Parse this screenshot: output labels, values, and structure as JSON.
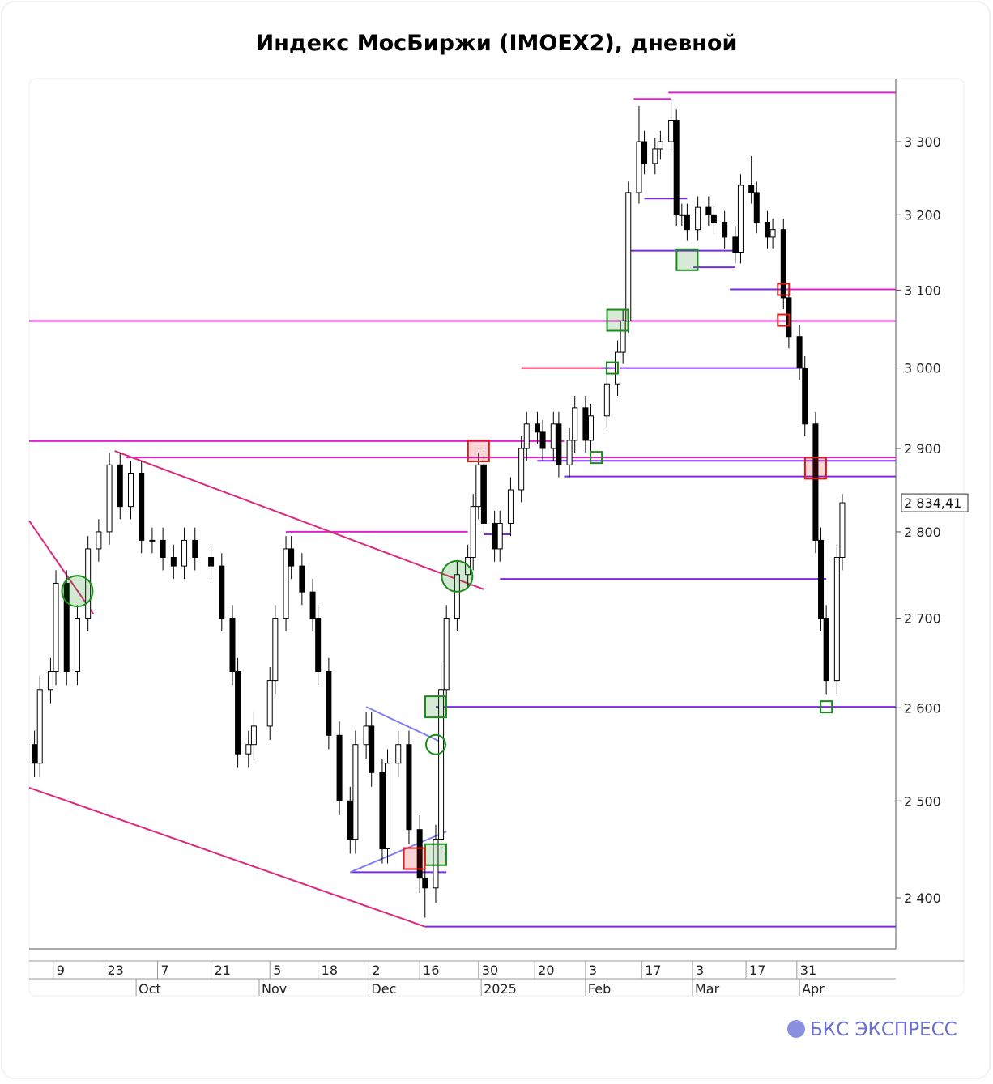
{
  "chart_data": {
    "type": "candlestick",
    "title": "Индекс МосБиржи (IMOEX2), дневной",
    "brand": "БКС ЭКСПРЕСС",
    "ylog": true,
    "ylim": [
      2349,
      3389
    ],
    "yticks": [
      {
        "value": 2400,
        "label": "2 400"
      },
      {
        "value": 2500,
        "label": "2 500"
      },
      {
        "value": 2600,
        "label": "2 600"
      },
      {
        "value": 2700,
        "label": "2 700"
      },
      {
        "value": 2800,
        "label": "2 800"
      },
      {
        "value": 2900,
        "label": "2 900"
      },
      {
        "value": 3000,
        "label": "3 000"
      },
      {
        "value": 3100,
        "label": "3 100"
      },
      {
        "value": 3200,
        "label": "3 200"
      },
      {
        "value": 3300,
        "label": "3 300"
      }
    ],
    "xlim": [
      0,
      162
    ],
    "xticks": [
      {
        "value": 4.5,
        "label": "9"
      },
      {
        "value": 14,
        "label": "23"
      },
      {
        "value": 24,
        "label": "7"
      },
      {
        "value": 34,
        "label": "21"
      },
      {
        "value": 45,
        "label": "5"
      },
      {
        "value": 54,
        "label": "18"
      },
      {
        "value": 63.5,
        "label": "2"
      },
      {
        "value": 73,
        "label": "16"
      },
      {
        "value": 84,
        "label": "30"
      },
      {
        "value": 94.5,
        "label": "20"
      },
      {
        "value": 104,
        "label": "3"
      },
      {
        "value": 114.5,
        "label": "17"
      },
      {
        "value": 124,
        "label": "3"
      },
      {
        "value": 134,
        "label": "17"
      },
      {
        "value": 143.5,
        "label": "31"
      }
    ],
    "xticks_month": [
      {
        "value": 20,
        "label": "Oct"
      },
      {
        "value": 43,
        "label": "Nov"
      },
      {
        "value": 63.5,
        "label": "Dec"
      },
      {
        "value": 84.5,
        "label": "2025"
      },
      {
        "value": 104,
        "label": "Feb"
      },
      {
        "value": 124,
        "label": "Mar"
      },
      {
        "value": 144,
        "label": "Apr"
      }
    ],
    "x": [
      1,
      2,
      4,
      5,
      7,
      9,
      11,
      13,
      15,
      17,
      19,
      21,
      23,
      25,
      27,
      29,
      31,
      34,
      36,
      38,
      39,
      41,
      42,
      45,
      46,
      48,
      49,
      51,
      53,
      54,
      56,
      58,
      60,
      61,
      63,
      64,
      66,
      67,
      69,
      71,
      73,
      74,
      76,
      77,
      78,
      80,
      82,
      83,
      84,
      85,
      87,
      88,
      90,
      92,
      93,
      95,
      96,
      98,
      99,
      101,
      102,
      104,
      105,
      108,
      110,
      111,
      112,
      114,
      115,
      117,
      118,
      120,
      121,
      122,
      123,
      125,
      127,
      128,
      130,
      132,
      133,
      135,
      136,
      138,
      139,
      141,
      142,
      144,
      145,
      147,
      148,
      149,
      151,
      152
    ],
    "open": [
      2560,
      2540,
      2620,
      2640,
      2740,
      2640,
      2700,
      2780,
      2800,
      2880,
      2830,
      2870,
      2790,
      2790,
      2770,
      2760,
      2790,
      2770,
      2760,
      2700,
      2640,
      2550,
      2560,
      2580,
      2630,
      2700,
      2780,
      2760,
      2730,
      2700,
      2640,
      2570,
      2500,
      2460,
      2560,
      2580,
      2530,
      2450,
      2540,
      2560,
      2470,
      2420,
      2410,
      2460,
      2620,
      2700,
      2750,
      2770,
      2830,
      2880,
      2810,
      2780,
      2810,
      2850,
      2900,
      2930,
      2920,
      2900,
      2930,
      2880,
      2910,
      2950,
      2910,
      2940,
      2980,
      3020,
      3060,
      3230,
      3300,
      3270,
      3290,
      3300,
      3330,
      3200,
      3200,
      3180,
      3210,
      3200,
      3190,
      3170,
      3150,
      3240,
      3230,
      3190,
      3170,
      3180,
      3090,
      3040,
      3000,
      2930,
      2790,
      2700,
      2630,
      2770
    ],
    "high": [
      2575,
      2635,
      2655,
      2755,
      2755,
      2715,
      2795,
      2815,
      2895,
      2895,
      2885,
      2885,
      2805,
      2805,
      2785,
      2805,
      2805,
      2785,
      2775,
      2715,
      2655,
      2575,
      2595,
      2645,
      2715,
      2795,
      2795,
      2775,
      2745,
      2715,
      2655,
      2585,
      2515,
      2575,
      2595,
      2595,
      2545,
      2555,
      2575,
      2575,
      2485,
      2435,
      2475,
      2650,
      2715,
      2765,
      2785,
      2845,
      2895,
      2895,
      2825,
      2825,
      2865,
      2915,
      2945,
      2945,
      2935,
      2945,
      2945,
      2925,
      2965,
      2965,
      2955,
      2995,
      3035,
      3075,
      3245,
      3350,
      3315,
      3305,
      3315,
      3360,
      3345,
      3215,
      3215,
      3225,
      3225,
      3215,
      3205,
      3185,
      3255,
      3280,
      3245,
      3205,
      3195,
      3195,
      3105,
      3055,
      3015,
      2945,
      2805,
      2715,
      2785,
      2845
    ],
    "low": [
      2525,
      2525,
      2605,
      2625,
      2625,
      2625,
      2685,
      2765,
      2785,
      2815,
      2815,
      2775,
      2775,
      2755,
      2745,
      2745,
      2755,
      2745,
      2685,
      2625,
      2535,
      2535,
      2545,
      2565,
      2615,
      2685,
      2745,
      2715,
      2685,
      2625,
      2555,
      2485,
      2445,
      2445,
      2545,
      2515,
      2435,
      2435,
      2525,
      2455,
      2405,
      2380,
      2395,
      2445,
      2605,
      2685,
      2735,
      2755,
      2815,
      2795,
      2765,
      2765,
      2795,
      2835,
      2885,
      2905,
      2885,
      2885,
      2865,
      2865,
      2895,
      2895,
      2895,
      2925,
      2965,
      3005,
      3045,
      3215,
      3255,
      3255,
      3275,
      3285,
      3185,
      3185,
      3165,
      3165,
      3185,
      3175,
      3155,
      3135,
      3135,
      3215,
      3175,
      3155,
      3155,
      3075,
      3025,
      2985,
      2915,
      2775,
      2685,
      2615,
      2615,
      2755
    ],
    "close": [
      2540,
      2620,
      2640,
      2740,
      2640,
      2700,
      2780,
      2800,
      2880,
      2830,
      2870,
      2790,
      2790,
      2770,
      2760,
      2790,
      2770,
      2760,
      2700,
      2640,
      2550,
      2560,
      2580,
      2630,
      2700,
      2780,
      2760,
      2730,
      2700,
      2640,
      2570,
      2500,
      2460,
      2560,
      2580,
      2530,
      2450,
      2540,
      2560,
      2470,
      2420,
      2410,
      2460,
      2620,
      2700,
      2750,
      2770,
      2830,
      2880,
      2810,
      2780,
      2810,
      2850,
      2900,
      2930,
      2920,
      2900,
      2930,
      2880,
      2910,
      2950,
      2910,
      2940,
      2980,
      3020,
      3060,
      3230,
      3300,
      3270,
      3290,
      3300,
      3330,
      3200,
      3200,
      3180,
      3210,
      3200,
      3190,
      3170,
      3150,
      3240,
      3230,
      3190,
      3170,
      3180,
      3090,
      3040,
      3000,
      2930,
      2790,
      2700,
      2630,
      2770,
      2834.41
    ],
    "last_label": "2 834,41",
    "levels": [
      {
        "y": 3369,
        "x": [
          119.5,
          162
        ],
        "color": "#e020d0"
      },
      {
        "y": 3360,
        "x": [
          113,
          120
        ],
        "color": "#e020d0"
      },
      {
        "y": 3060,
        "x": [
          0,
          162
        ],
        "color": "#e020d0"
      },
      {
        "y": 2909,
        "x": [
          0,
          100
        ],
        "color": "#e020d0"
      },
      {
        "y": 2889,
        "x": [
          18,
          162
        ],
        "color": "#e020d0"
      },
      {
        "y": 3101,
        "x": [
          131,
          162
        ],
        "color": "#e020d0"
      },
      {
        "y": 2800,
        "x": [
          48,
          82
        ],
        "color": "#e020d0"
      },
      {
        "y": 3000,
        "x": [
          92,
          109
        ],
        "color": "#e8174f"
      },
      {
        "y": 3222,
        "x": [
          115,
          123
        ],
        "color": "#7b2be0"
      },
      {
        "y": 3152,
        "x": [
          112,
          132
        ],
        "color": "#7b2be0"
      },
      {
        "y": 3130,
        "x": [
          124,
          132
        ],
        "color": "#7b2be0"
      },
      {
        "y": 3101,
        "x": [
          131,
          141
        ],
        "color": "#7b2be0"
      },
      {
        "y": 3000,
        "x": [
          107,
          145
        ],
        "color": "#7b2be0"
      },
      {
        "y": 2885,
        "x": [
          95,
          162
        ],
        "color": "#7b2be0"
      },
      {
        "y": 2866,
        "x": [
          100,
          162
        ],
        "color": "#7b2be0"
      },
      {
        "y": 2797,
        "x": [
          85,
          90
        ],
        "color": "#7b2be0"
      },
      {
        "y": 2745,
        "x": [
          88,
          149
        ],
        "color": "#7b2be0"
      },
      {
        "y": 2601,
        "x": [
          76,
          162
        ],
        "color": "#7b2be0"
      },
      {
        "y": 2426,
        "x": [
          60,
          78
        ],
        "color": "#7b2be0"
      },
      {
        "y": 2371,
        "x": [
          74,
          162
        ],
        "color": "#7b2be0"
      }
    ],
    "trendlines": [
      {
        "x": [
          0,
          74
        ],
        "y": [
          2514,
          2371
        ],
        "color": "#e0287a"
      },
      {
        "x": [
          16,
          85
        ],
        "y": [
          2897,
          2733
        ],
        "color": "#e0287a"
      },
      {
        "x": [
          0,
          12
        ],
        "y": [
          2813,
          2705
        ],
        "color": "#e0287a"
      },
      {
        "x": [
          63,
          78
        ],
        "y": [
          2601,
          2560
        ],
        "color": "#8080ee"
      },
      {
        "x": [
          60,
          78
        ],
        "y": [
          2426,
          2468
        ],
        "color": "#8080ee"
      }
    ],
    "markers": [
      {
        "x": 9,
        "y": 2731,
        "shape": "circle",
        "color": "#1a8c1a"
      },
      {
        "x": 80,
        "y": 2748,
        "shape": "circle",
        "color": "#1a8c1a"
      },
      {
        "x": 76,
        "y": 2560,
        "shape": "ring",
        "color": "#1a8c1a"
      },
      {
        "x": 84,
        "y": 2897,
        "shape": "square",
        "color": "#e01818"
      },
      {
        "x": 76,
        "y": 2601,
        "shape": "square",
        "color": "#1a8c1a"
      },
      {
        "x": 76,
        "y": 2444,
        "shape": "square",
        "color": "#1a8c1a"
      },
      {
        "x": 72,
        "y": 2440,
        "shape": "square",
        "color": "#e01818"
      },
      {
        "x": 110,
        "y": 3061,
        "shape": "square",
        "color": "#1a8c1a"
      },
      {
        "x": 123,
        "y": 3140,
        "shape": "square",
        "color": "#1a8c1a"
      },
      {
        "x": 141,
        "y": 3101,
        "shape": "small",
        "color": "#e01818"
      },
      {
        "x": 141,
        "y": 3061,
        "shape": "small",
        "color": "#e01818"
      },
      {
        "x": 147,
        "y": 2876,
        "shape": "square",
        "color": "#e01818"
      },
      {
        "x": 149,
        "y": 2601,
        "shape": "small",
        "color": "#1a8c1a"
      },
      {
        "x": 106,
        "y": 2889,
        "shape": "small",
        "color": "#1a8c1a"
      },
      {
        "x": 109,
        "y": 3000,
        "shape": "small",
        "color": "#1a8c1a"
      }
    ]
  }
}
